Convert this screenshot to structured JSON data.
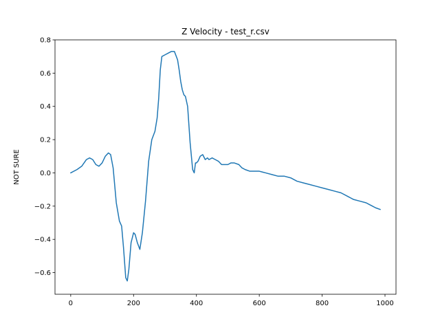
{
  "chart_data": {
    "type": "line",
    "title": "Z Velocity - test_r.csv",
    "xlabel": "",
    "ylabel": "NOT SURE",
    "xlim": [
      -50,
      1035
    ],
    "ylim": [
      -0.73,
      0.8
    ],
    "xticks": [
      0,
      200,
      400,
      600,
      800,
      1000
    ],
    "xtick_labels": [
      "0",
      "200",
      "400",
      "600",
      "800",
      "1000"
    ],
    "yticks": [
      -0.6,
      -0.4,
      -0.2,
      0.0,
      0.2,
      0.4,
      0.6,
      0.8
    ],
    "ytick_labels": [
      "−0.6",
      "−0.4",
      "−0.2",
      "0.0",
      "0.2",
      "0.4",
      "0.6",
      "0.8"
    ],
    "grid": false,
    "series": [
      {
        "color": "#1f77b4",
        "x": [
          0,
          20,
          35,
          50,
          60,
          70,
          80,
          90,
          100,
          110,
          120,
          127,
          135,
          145,
          155,
          162,
          168,
          175,
          180,
          185,
          192,
          200,
          205,
          212,
          220,
          228,
          238,
          248,
          258,
          268,
          275,
          280,
          285,
          290,
          300,
          310,
          320,
          330,
          340,
          345,
          350,
          355,
          360,
          365,
          372,
          380,
          388,
          393,
          397,
          400,
          405,
          412,
          420,
          428,
          435,
          440,
          450,
          460,
          470,
          480,
          490,
          500,
          510,
          520,
          535,
          545,
          555,
          570,
          585,
          600,
          620,
          640,
          660,
          680,
          700,
          720,
          740,
          760,
          780,
          800,
          820,
          840,
          860,
          880,
          900,
          920,
          940,
          950,
          960,
          970,
          985
        ],
        "y": [
          0.0,
          0.02,
          0.04,
          0.08,
          0.09,
          0.08,
          0.05,
          0.04,
          0.06,
          0.1,
          0.12,
          0.11,
          0.03,
          -0.18,
          -0.29,
          -0.32,
          -0.45,
          -0.63,
          -0.65,
          -0.58,
          -0.42,
          -0.36,
          -0.37,
          -0.42,
          -0.46,
          -0.36,
          -0.17,
          0.07,
          0.2,
          0.25,
          0.33,
          0.45,
          0.62,
          0.7,
          0.71,
          0.72,
          0.73,
          0.73,
          0.68,
          0.62,
          0.55,
          0.5,
          0.47,
          0.46,
          0.4,
          0.18,
          0.02,
          0.0,
          0.06,
          0.06,
          0.07,
          0.1,
          0.11,
          0.08,
          0.09,
          0.08,
          0.09,
          0.08,
          0.07,
          0.05,
          0.05,
          0.05,
          0.06,
          0.06,
          0.05,
          0.03,
          0.02,
          0.01,
          0.01,
          0.01,
          0.0,
          -0.01,
          -0.02,
          -0.02,
          -0.03,
          -0.05,
          -0.06,
          -0.07,
          -0.08,
          -0.09,
          -0.1,
          -0.11,
          -0.12,
          -0.14,
          -0.16,
          -0.17,
          -0.18,
          -0.19,
          -0.2,
          -0.21,
          -0.22
        ]
      }
    ]
  }
}
